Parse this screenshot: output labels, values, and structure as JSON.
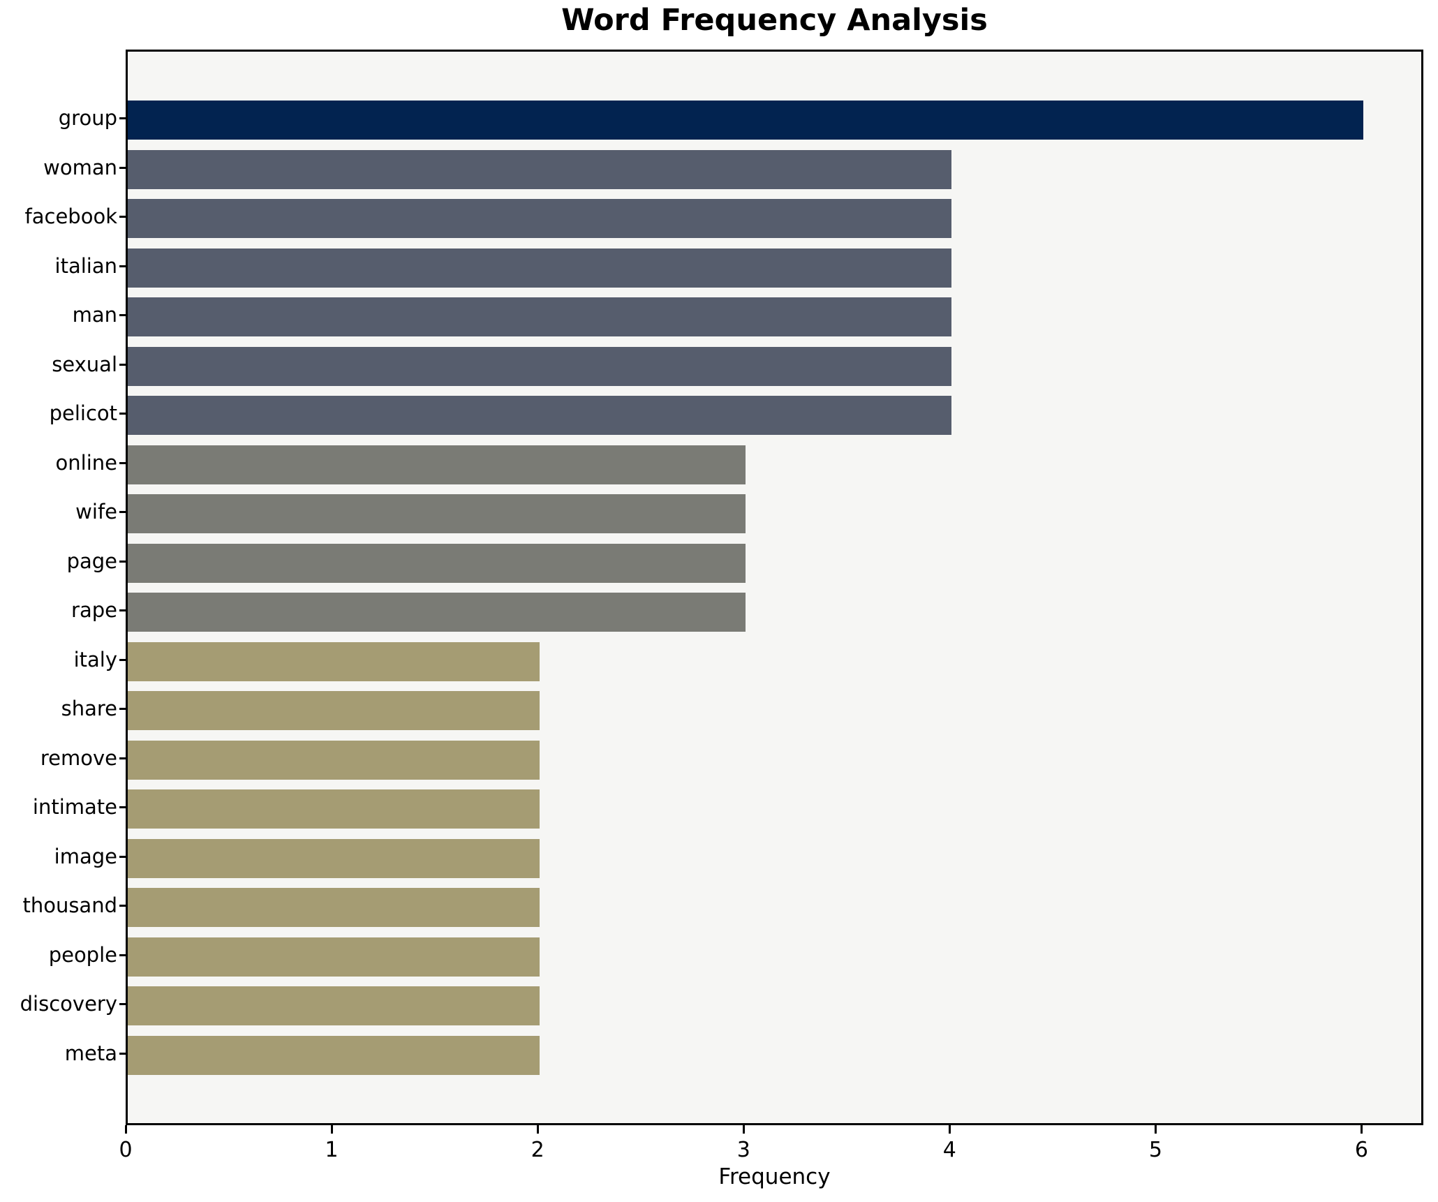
{
  "chart_data": {
    "type": "bar",
    "orientation": "horizontal",
    "title": "Word Frequency Analysis",
    "xlabel": "Frequency",
    "ylabel": "",
    "categories": [
      "group",
      "woman",
      "facebook",
      "italian",
      "man",
      "sexual",
      "pelicot",
      "online",
      "wife",
      "page",
      "rape",
      "italy",
      "share",
      "remove",
      "intimate",
      "image",
      "thousand",
      "people",
      "discovery",
      "meta"
    ],
    "values": [
      6,
      4,
      4,
      4,
      4,
      4,
      4,
      3,
      3,
      3,
      3,
      2,
      2,
      2,
      2,
      2,
      2,
      2,
      2,
      2
    ],
    "xticks": [
      0,
      1,
      2,
      3,
      4,
      5,
      6
    ],
    "xlim": [
      0,
      6.3
    ],
    "grid": false,
    "legend": null,
    "value_colors": {
      "6": "#022350",
      "4": "#565d6d",
      "3": "#7a7b75",
      "2": "#a59c73"
    },
    "plot_background": "#f6f6f4",
    "figure_background": "#ffffff",
    "spine_color": "#000000",
    "text_color": "#000000"
  }
}
